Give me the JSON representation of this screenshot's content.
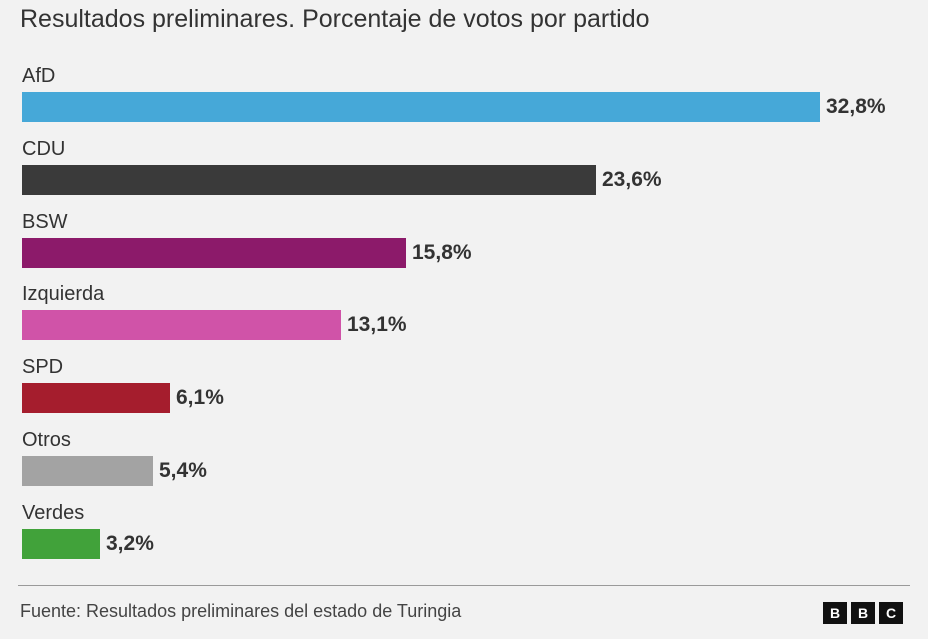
{
  "title": "Resultados preliminares. Porcentaje de votos por partido",
  "chart_data": {
    "type": "bar",
    "orientation": "horizontal",
    "title": "Resultados preliminares. Porcentaje de votos por partido",
    "categories": [
      "AfD",
      "CDU",
      "BSW",
      "Izquierda",
      "SPD",
      "Otros",
      "Verdes"
    ],
    "values": [
      32.8,
      23.6,
      15.8,
      13.1,
      6.1,
      5.4,
      3.2
    ],
    "value_labels": [
      "32,8%",
      "23,6%",
      "15,8%",
      "13,1%",
      "6,1%",
      "5,4%",
      "3,2%"
    ],
    "colors": [
      "#46a8d8",
      "#3a3a3a",
      "#8c1a6a",
      "#d053a8",
      "#a51d2d",
      "#a3a3a3",
      "#41a23a"
    ],
    "unit": "%",
    "xlim": [
      0,
      32.8
    ],
    "grid": false,
    "legend": "none"
  },
  "footer": {
    "source": "Fuente: Resultados preliminares del estado de Turingia",
    "logo_letters": [
      "B",
      "B",
      "C"
    ]
  }
}
